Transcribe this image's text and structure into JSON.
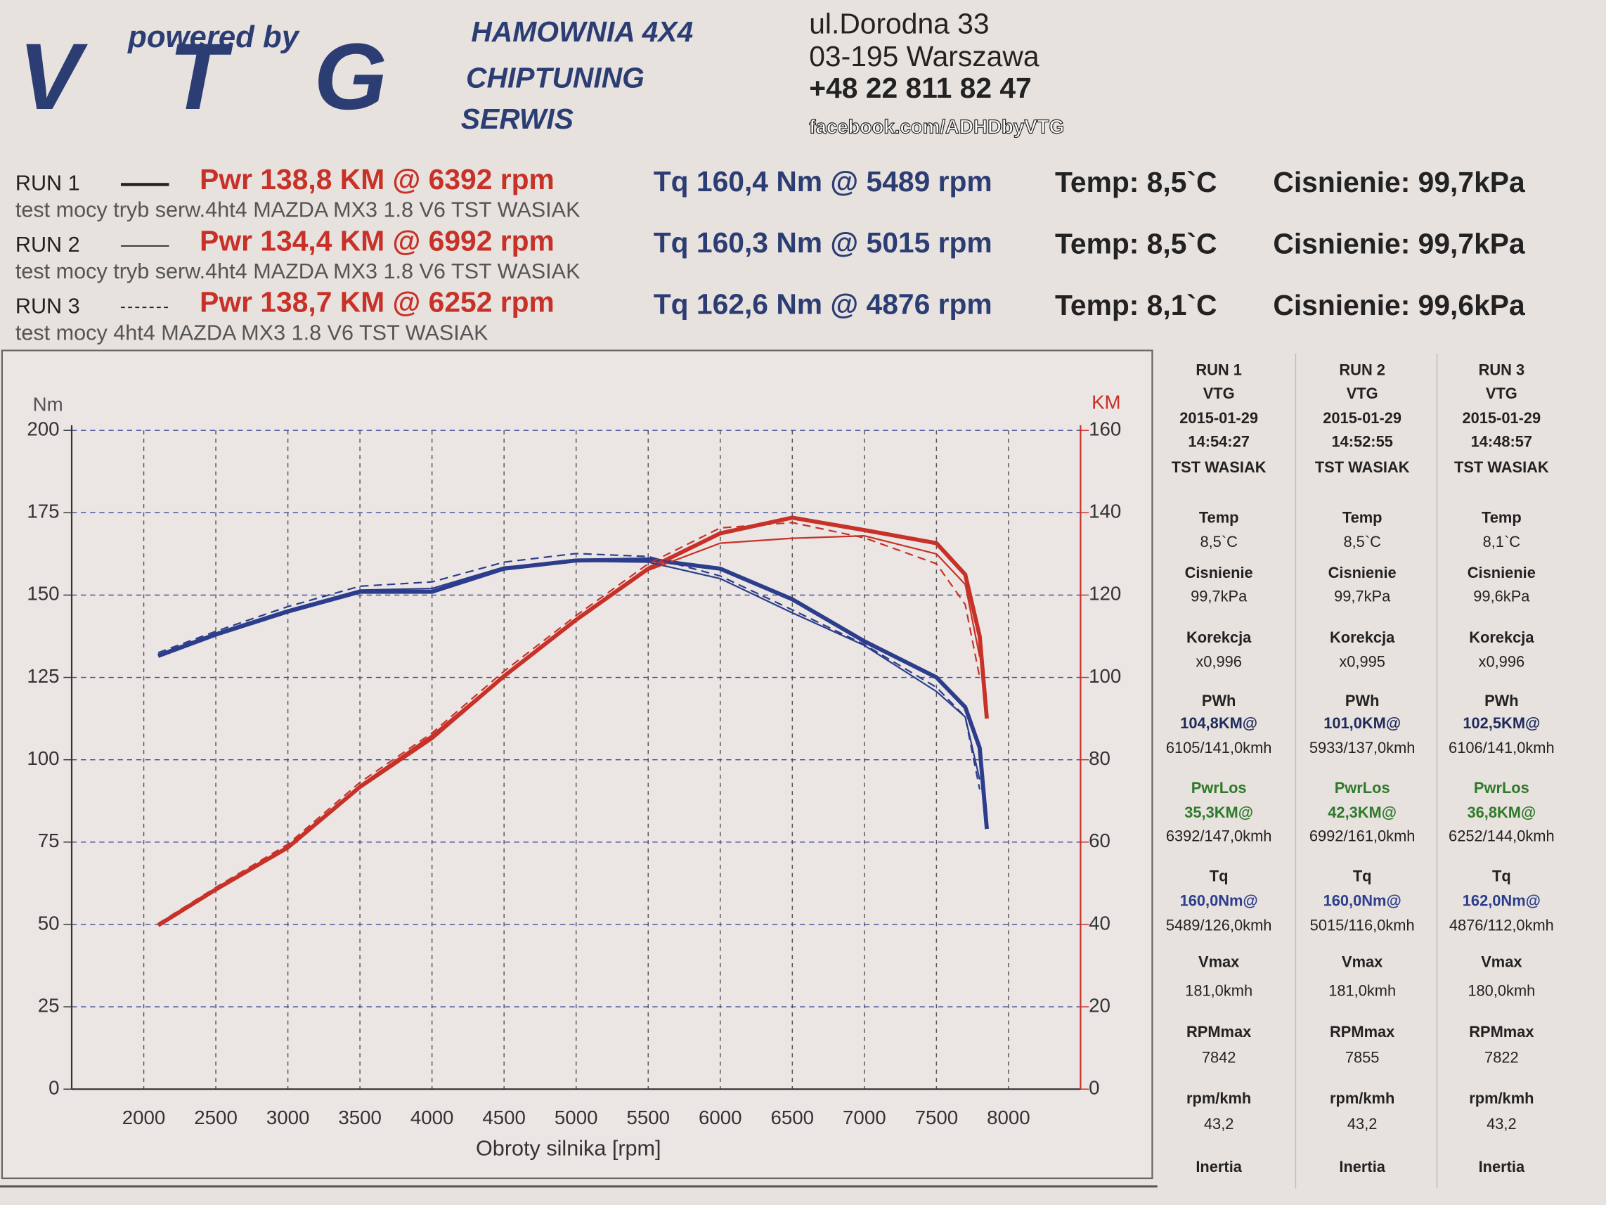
{
  "header": {
    "logo_tagline": "powered by",
    "logo": "VTG",
    "services": [
      "HAMOWNIA 4X4",
      "CHIPTUNING",
      "SERWIS"
    ],
    "address": [
      "ul.Dorodna 33",
      "03-195 Warszawa",
      "+48 22 811 82 47"
    ],
    "social": "facebook.com/ADHDbyVTG"
  },
  "chart_data": {
    "type": "line",
    "y_unit": "Nm",
    "y2_unit": "KM",
    "x_label": "Obroty silnika [rpm]",
    "torque_color": "#2b3d8c",
    "power_color": "#c73128",
    "xlim": [
      1500,
      8500
    ],
    "xticks": [
      2000,
      2500,
      3000,
      3500,
      4000,
      4500,
      5000,
      5500,
      6000,
      6500,
      7000,
      7500,
      8000
    ],
    "ylim": [
      0,
      200
    ],
    "yticks": [
      0,
      25,
      50,
      75,
      100,
      125,
      150,
      175,
      200
    ],
    "y2lim": [
      0,
      160
    ],
    "y2ticks": [
      0,
      20,
      40,
      60,
      80,
      100,
      120,
      140,
      160
    ],
    "grid": true,
    "x": [
      2100,
      2500,
      3000,
      3500,
      4000,
      4500,
      5000,
      5500,
      6000,
      6500,
      7000,
      7500,
      7700,
      7800,
      7850
    ],
    "series": [
      {
        "name": "RUN 1",
        "line_style": "solid",
        "power_label": "Pwr 138,8 KM @ 6392 rpm",
        "torque_label": "Tq 160,4 Nm @ 5489 rpm",
        "temp": "Temp: 8,5`C",
        "pressure": "Cisnienie: 99,7kPa",
        "description": "test mocy tryb serw.4ht4 MAZDA MX3 1.8 V6 TST WASIAK",
        "torque": [
          131.5,
          138,
          145,
          151,
          151,
          158,
          160.5,
          160.8,
          158,
          148.7,
          136,
          125,
          116,
          103.6,
          79
        ],
        "power": [
          39.8,
          48.5,
          58.7,
          73.4,
          85.3,
          100.3,
          114,
          126.4,
          135,
          138.8,
          135.8,
          132.6,
          125,
          110,
          90
        ]
      },
      {
        "name": "RUN 2",
        "line_style": "thin",
        "power_label": "Pwr 134,4 KM @ 6992 rpm",
        "torque_label": "Tq 160,3 Nm @ 5015 rpm",
        "temp": "Temp: 8,5`C",
        "pressure": "Cisnienie: 99,7kPa",
        "description": "test mocy tryb serw.4ht4 MAZDA MX3 1.8 V6 TST WASIAK",
        "torque": [
          132,
          138.5,
          145.5,
          151.5,
          152,
          158.5,
          160.3,
          160,
          155,
          144.6,
          134.7,
          120.7,
          113,
          94,
          null
        ],
        "power": [
          40,
          48.8,
          59,
          73.8,
          86,
          100.5,
          114,
          126,
          132.6,
          133.8,
          134.4,
          130,
          122.6,
          105,
          null
        ]
      },
      {
        "name": "RUN 3",
        "line_style": "dashed",
        "power_label": "Pwr 138,7 KM @ 6252 rpm",
        "torque_label": "Tq 162,6 Nm @ 4876 rpm",
        "temp": "Temp: 8,1`C",
        "pressure": "Cisnienie: 99,6kPa",
        "description": "test mocy 4ht4 MAZDA MX3 1.8 V6 TST WASIAK",
        "torque": [
          132.5,
          139,
          146.5,
          152.7,
          154,
          160,
          162.6,
          161.7,
          155.8,
          145.5,
          135,
          122,
          113,
          91,
          null
        ],
        "power": [
          40.2,
          49,
          59.5,
          74.5,
          86.5,
          101.5,
          115,
          127.6,
          136.3,
          137.6,
          133.9,
          127.6,
          117.7,
          100,
          null
        ]
      }
    ]
  },
  "run_table": [
    [
      "RUN 1",
      "VTG",
      "2015-01-29",
      "14:54:27",
      "TST WASIAK",
      "Temp",
      "8,5`C",
      "Cisnienie",
      "99,7kPa",
      "Korekcja",
      "x0,996",
      "PWh",
      "104,8KM@",
      "6105/141,0kmh",
      "PwrLos",
      "35,3KM@",
      "6392/147,0kmh",
      "Tq",
      "160,0Nm@",
      "5489/126,0kmh",
      "Vmax",
      "181,0kmh",
      "RPMmax",
      "7842",
      "rpm/kmh",
      "43,2",
      "Inertia"
    ],
    [
      "RUN 2",
      "VTG",
      "2015-01-29",
      "14:52:55",
      "TST WASIAK",
      "Temp",
      "8,5`C",
      "Cisnienie",
      "99,7kPa",
      "Korekcja",
      "x0,995",
      "PWh",
      "101,0KM@",
      "5933/137,0kmh",
      "PwrLos",
      "42,3KM@",
      "6992/161,0kmh",
      "Tq",
      "160,0Nm@",
      "5015/116,0kmh",
      "Vmax",
      "181,0kmh",
      "RPMmax",
      "7855",
      "rpm/kmh",
      "43,2",
      "Inertia"
    ],
    [
      "RUN 3",
      "VTG",
      "2015-01-29",
      "14:48:57",
      "TST WASIAK",
      "Temp",
      "8,1`C",
      "Cisnienie",
      "99,6kPa",
      "Korekcja",
      "x0,996",
      "PWh",
      "102,5KM@",
      "6106/141,0kmh",
      "PwrLos",
      "36,8KM@",
      "6252/144,0kmh",
      "Tq",
      "162,0Nm@",
      "4876/112,0kmh",
      "Vmax",
      "180,0kmh",
      "RPMmax",
      "7822",
      "rpm/kmh",
      "43,2",
      "Inertia"
    ]
  ]
}
